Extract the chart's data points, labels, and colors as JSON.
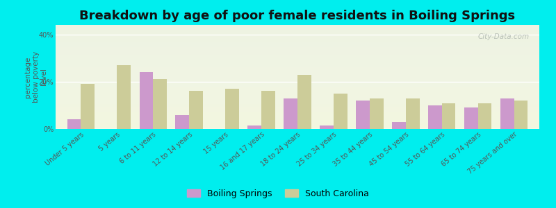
{
  "title": "Breakdown by age of poor female residents in Boiling Springs",
  "ylabel": "percentage\nbelow poverty\nlevel",
  "categories": [
    "Under 5 years",
    "5 years",
    "6 to 11 years",
    "12 to 14 years",
    "15 years",
    "16 and 17 years",
    "18 to 24 years",
    "25 to 34 years",
    "35 to 44 years",
    "45 to 54 years",
    "55 to 64 years",
    "65 to 74 years",
    "75 years and over"
  ],
  "boiling_springs": [
    4,
    0,
    24,
    6,
    0,
    1.5,
    13,
    1.5,
    12,
    3,
    10,
    9,
    13
  ],
  "south_carolina": [
    19,
    27,
    21,
    16,
    17,
    16,
    23,
    15,
    13,
    13,
    11,
    11,
    12
  ],
  "boiling_springs_color": "#cc99cc",
  "south_carolina_color": "#cccc99",
  "outer_bg": "#00eeee",
  "plot_bg": "#eef3e2",
  "ylim": [
    0,
    44
  ],
  "yticks": [
    0,
    20,
    40
  ],
  "ytick_labels": [
    "0%",
    "20%",
    "40%"
  ],
  "bar_width": 0.38,
  "title_fontsize": 13,
  "axis_label_fontsize": 7.5,
  "tick_fontsize": 7,
  "legend_fontsize": 9
}
